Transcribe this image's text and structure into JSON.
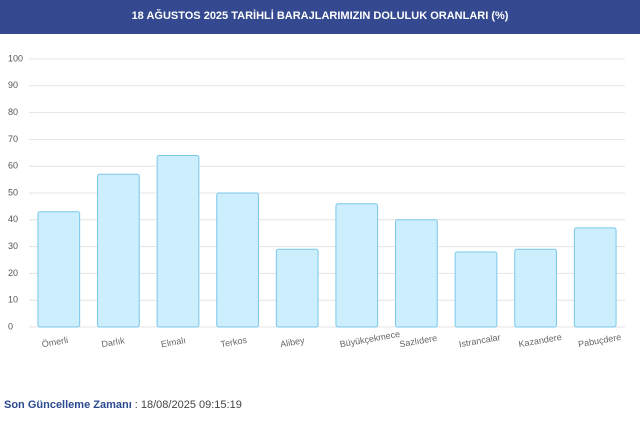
{
  "chart_data": {
    "type": "bar",
    "title": "18 AĞUSTOS 2025 TARİHLİ BARAJLARIMIZIN DOLULUK ORANLARI (%)",
    "categories": [
      "Ömerli",
      "Darlık",
      "Elmalı",
      "Terkos",
      "Alibey",
      "Büyükçekmece",
      "Sazlıdere",
      "Istrancalar",
      "Kazandere",
      "Pabuçdere"
    ],
    "values": [
      43,
      57,
      64,
      50,
      29,
      46,
      40,
      28,
      29,
      37
    ],
    "color": "#cdeefc",
    "ylim": [
      0,
      100
    ],
    "yticks": [
      0,
      10,
      20,
      30,
      40,
      50,
      60,
      70,
      80,
      90,
      100
    ],
    "grid": true
  },
  "footer": {
    "label": "Son Güncelleme Zamanı",
    "value": ": 18/08/2025 09:15:19"
  }
}
